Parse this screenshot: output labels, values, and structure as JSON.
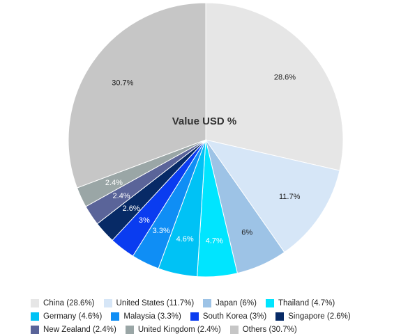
{
  "chart_data": {
    "type": "pie",
    "title": "Value USD %",
    "start_angle": "12 o'clock",
    "direction": "clockwise",
    "slices": [
      {
        "label": "China",
        "value": 28.6,
        "display": "28.6%",
        "legend": "China (28.6%)",
        "color": "#e6e6e6",
        "label_color": "#222222"
      },
      {
        "label": "United States",
        "value": 11.7,
        "display": "11.7%",
        "legend": "United States (11.7%)",
        "color": "#d6e6f7",
        "label_color": "#222222"
      },
      {
        "label": "Japan",
        "value": 6,
        "display": "6%",
        "legend": "Japan (6%)",
        "color": "#9dc3e6",
        "label_color": "#222222"
      },
      {
        "label": "Thailand",
        "value": 4.7,
        "display": "4.7%",
        "legend": "Thailand (4.7%)",
        "color": "#00e5ff",
        "label_color": "#ffffff"
      },
      {
        "label": "Germany",
        "value": 4.6,
        "display": "4.6%",
        "legend": "Germany (4.6%)",
        "color": "#00c2f5",
        "label_color": "#ffffff"
      },
      {
        "label": "Malaysia",
        "value": 3.3,
        "display": "3.3%",
        "legend": "Malaysia (3.3%)",
        "color": "#0f8ef5",
        "label_color": "#ffffff"
      },
      {
        "label": "South Korea",
        "value": 3,
        "display": "3%",
        "legend": "South Korea (3%)",
        "color": "#0a3cf0",
        "label_color": "#ffffff"
      },
      {
        "label": "Singapore",
        "value": 2.6,
        "display": "2.6%",
        "legend": "Singapore (2.6%)",
        "color": "#072a66",
        "label_color": "#ffffff"
      },
      {
        "label": "New Zealand",
        "value": 2.4,
        "display": "2.4%",
        "legend": "New Zealand (2.4%)",
        "color": "#5a6499",
        "label_color": "#ffffff"
      },
      {
        "label": "United Kingdom",
        "value": 2.4,
        "display": "2.4%",
        "legend": "United Kingdom (2.4%)",
        "color": "#9aa6a6",
        "label_color": "#ffffff"
      },
      {
        "label": "Others",
        "value": 30.7,
        "display": "30.7%",
        "legend": "Others (30.7%)",
        "color": "#c6c6c6",
        "label_color": "#222222"
      }
    ],
    "legend_position": "bottom"
  }
}
